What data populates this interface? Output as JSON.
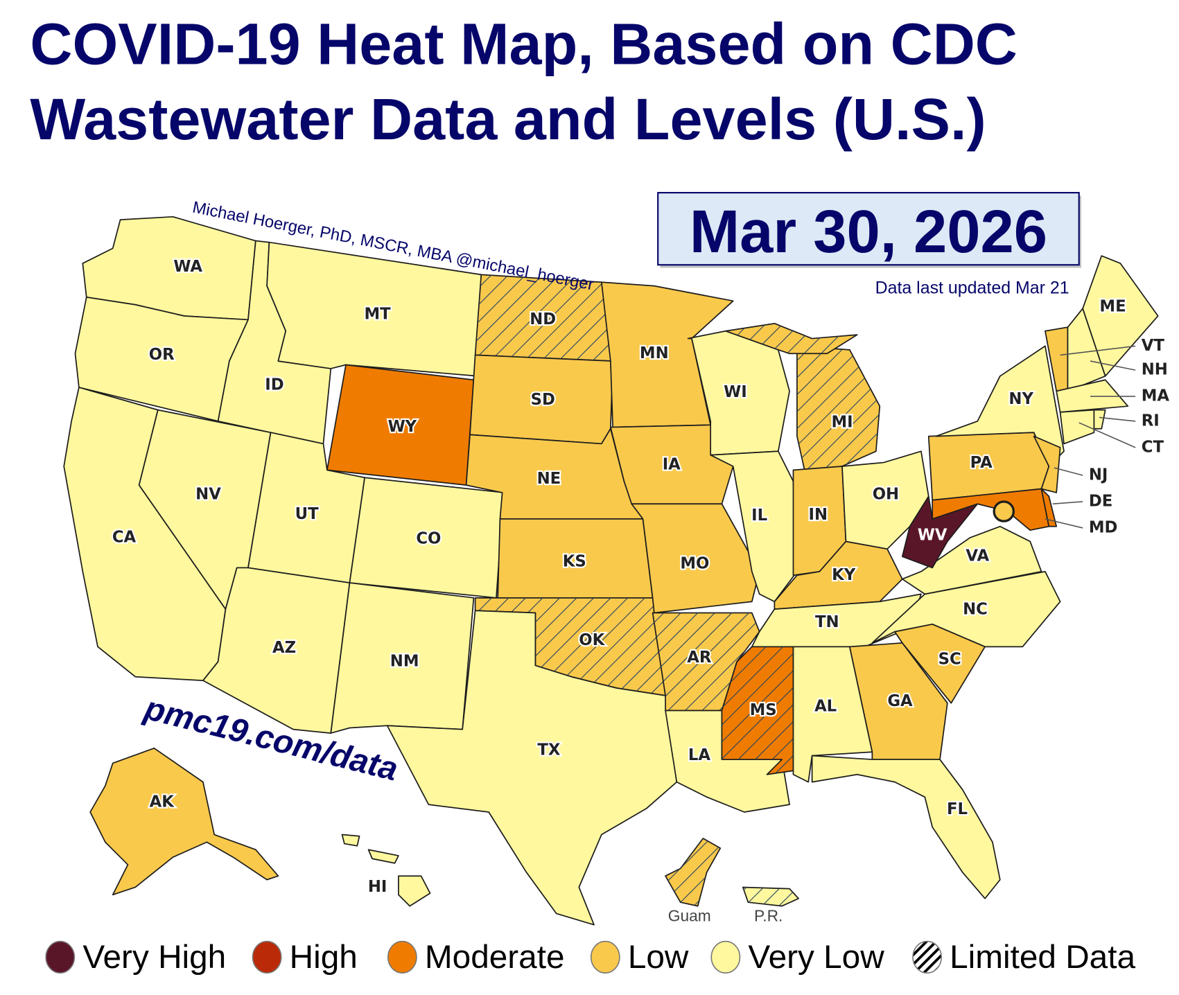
{
  "title_lines": [
    "COVID-19 Heat Map, Based on CDC",
    "Wastewater Data and Levels (U.S.)"
  ],
  "date": "Mar 30, 2026",
  "last_updated": "Data last updated Mar 21",
  "author_credit": "Michael Hoerger, PhD, MSCR, MBA  @michael_hoerger",
  "website": "pmc19.com/data",
  "colors": {
    "very_high": "#5a1629",
    "high": "#bb2a08",
    "moderate": "#ef7c00",
    "low": "#f9c94c",
    "very_low": "#fff89e",
    "title": "#06066a",
    "hatch": "#1f3f5f"
  },
  "legend": [
    {
      "key": "very_high",
      "label": "Very High"
    },
    {
      "key": "high",
      "label": "High"
    },
    {
      "key": "moderate",
      "label": "Moderate"
    },
    {
      "key": "low",
      "label": "Low"
    },
    {
      "key": "very_low",
      "label": "Very Low"
    },
    {
      "key": "limited",
      "label": "Limited Data"
    }
  ],
  "states": {
    "WA": {
      "level": "very_low"
    },
    "OR": {
      "level": "very_low"
    },
    "CA": {
      "level": "very_low"
    },
    "NV": {
      "level": "very_low"
    },
    "ID": {
      "level": "very_low"
    },
    "MT": {
      "level": "very_low"
    },
    "WY": {
      "level": "moderate"
    },
    "UT": {
      "level": "very_low"
    },
    "CO": {
      "level": "very_low"
    },
    "AZ": {
      "level": "very_low"
    },
    "NM": {
      "level": "very_low"
    },
    "ND": {
      "level": "low",
      "limited": true
    },
    "SD": {
      "level": "low"
    },
    "NE": {
      "level": "low"
    },
    "KS": {
      "level": "low"
    },
    "OK": {
      "level": "low",
      "limited": true
    },
    "TX": {
      "level": "very_low"
    },
    "MN": {
      "level": "low"
    },
    "IA": {
      "level": "low"
    },
    "MO": {
      "level": "low"
    },
    "AR": {
      "level": "low",
      "limited": true
    },
    "LA": {
      "level": "very_low"
    },
    "WI": {
      "level": "very_low"
    },
    "IL": {
      "level": "very_low"
    },
    "MI": {
      "level": "low",
      "limited": true
    },
    "IN": {
      "level": "low"
    },
    "OH": {
      "level": "very_low"
    },
    "KY": {
      "level": "low"
    },
    "TN": {
      "level": "very_low"
    },
    "MS": {
      "level": "moderate",
      "limited": true
    },
    "AL": {
      "level": "very_low"
    },
    "GA": {
      "level": "low"
    },
    "FL": {
      "level": "very_low"
    },
    "SC": {
      "level": "low"
    },
    "NC": {
      "level": "very_low"
    },
    "VA": {
      "level": "very_low"
    },
    "WV": {
      "level": "very_high"
    },
    "PA": {
      "level": "low"
    },
    "NY": {
      "level": "very_low"
    },
    "MD": {
      "level": "moderate"
    },
    "DE": {
      "level": "moderate"
    },
    "NJ": {
      "level": "low"
    },
    "VT": {
      "level": "low"
    },
    "NH": {
      "level": "very_low"
    },
    "ME": {
      "level": "very_low"
    },
    "MA": {
      "level": "very_low"
    },
    "CT": {
      "level": "very_low"
    },
    "RI": {
      "level": "very_low"
    },
    "AK": {
      "level": "low"
    },
    "HI": {
      "level": "very_low"
    },
    "DC": {
      "level": "low"
    }
  },
  "territories": {
    "Guam": {
      "label": "Guam",
      "level": "low",
      "limited": true
    },
    "PR": {
      "label": "P.R.",
      "level": "very_low",
      "limited": true
    }
  }
}
